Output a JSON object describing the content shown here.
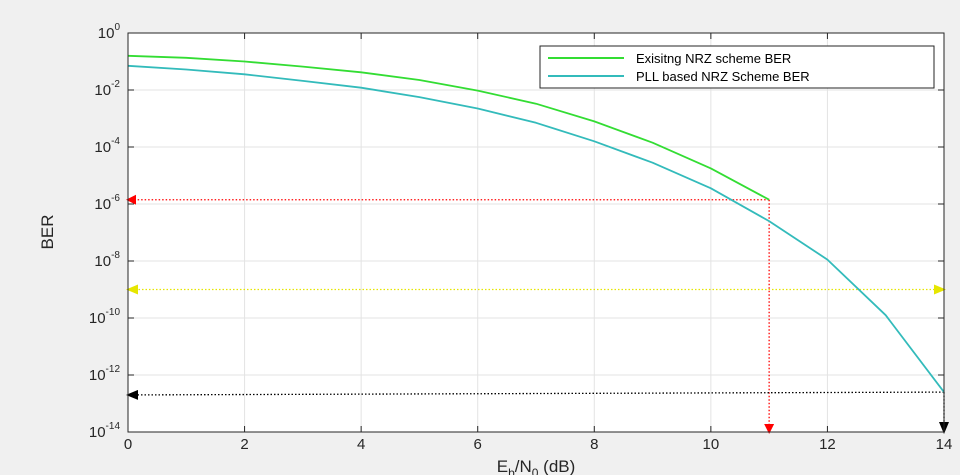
{
  "chart_data": {
    "type": "line",
    "title": "",
    "xlabel": {
      "base": "E",
      "sub1": "b",
      "mid": "/N",
      "sub2": "0",
      "tail": " (dB)"
    },
    "ylabel": "BER",
    "xlim": [
      0,
      14
    ],
    "ylim_log10": [
      -14,
      0
    ],
    "y_scale": "log",
    "grid": true,
    "legend_position": "top-right",
    "x_ticks": [
      0,
      2,
      4,
      6,
      8,
      10,
      12,
      14
    ],
    "y_tick_base": "10",
    "y_tick_exponents": [
      "0",
      "-2",
      "-4",
      "-6",
      "-8",
      "-10",
      "-12",
      "-14"
    ],
    "series": [
      {
        "name": "Exisitng NRZ scheme BER",
        "color": "#33dd33",
        "x": [
          0,
          1,
          2,
          3,
          4,
          5,
          6,
          7,
          8,
          9,
          10,
          11
        ],
        "log10_y": [
          -0.8,
          -0.87,
          -1.0,
          -1.18,
          -1.38,
          -1.65,
          -2.02,
          -2.48,
          -3.1,
          -3.85,
          -4.75,
          -5.85
        ]
      },
      {
        "name": "PLL based NRZ Scheme BER",
        "color": "#33bbbb",
        "x": [
          0,
          1,
          2,
          3,
          4,
          5,
          6,
          7,
          8,
          9,
          10,
          11,
          12,
          13,
          14
        ],
        "log10_y": [
          -1.15,
          -1.28,
          -1.45,
          -1.68,
          -1.92,
          -2.25,
          -2.65,
          -3.15,
          -3.8,
          -4.55,
          -5.45,
          -6.6,
          -7.95,
          -9.9,
          -12.6
        ]
      }
    ],
    "annotations": [
      {
        "name": "red-horizontal",
        "color": "#ff0000",
        "from": [
          11,
          -5.85
        ],
        "to": [
          0,
          -5.85
        ],
        "arrow": "end"
      },
      {
        "name": "red-vertical",
        "color": "#ff0000",
        "from": [
          11,
          -5.85
        ],
        "to": [
          11,
          -14
        ],
        "arrow": "end"
      },
      {
        "name": "yellow-horizontal",
        "color": "#e6e600",
        "from": [
          0,
          -9
        ],
        "to": [
          14,
          -9
        ],
        "arrow": "both"
      },
      {
        "name": "black-horizontal",
        "color": "#000000",
        "from": [
          14,
          -12.6
        ],
        "to": [
          0,
          -12.7
        ],
        "arrow": "end"
      },
      {
        "name": "black-vertical",
        "color": "#000000",
        "from": [
          14,
          -12.6
        ],
        "to": [
          14,
          -14
        ],
        "arrow": "end"
      }
    ]
  }
}
